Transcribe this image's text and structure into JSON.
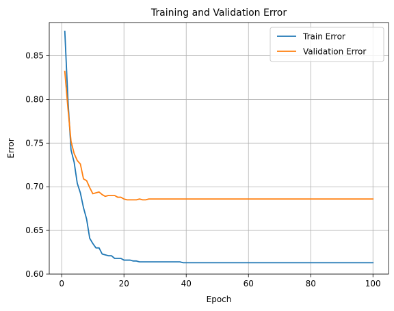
{
  "chart_data": {
    "type": "line",
    "title": "Training and Validation Error",
    "xlabel": "Epoch",
    "ylabel": "Error",
    "xlim": [
      -4,
      105
    ],
    "ylim": [
      0.6,
      0.888
    ],
    "xticks": [
      0,
      20,
      40,
      60,
      80,
      100
    ],
    "yticks": [
      0.6,
      0.65,
      0.7,
      0.75,
      0.8,
      0.85
    ],
    "xtick_labels": [
      "0",
      "20",
      "40",
      "60",
      "80",
      "100"
    ],
    "ytick_labels": [
      "0.60",
      "0.65",
      "0.70",
      "0.75",
      "0.80",
      "0.85"
    ],
    "grid": true,
    "legend_position": "upper-right",
    "series": [
      {
        "name": "Train Error",
        "color": "#1f77b4",
        "x": [
          1,
          2,
          3,
          4,
          5,
          6,
          7,
          8,
          9,
          10,
          11,
          12,
          13,
          14,
          15,
          16,
          17,
          18,
          19,
          20,
          21,
          22,
          23,
          24,
          25,
          26,
          27,
          28,
          29,
          30,
          31,
          32,
          33,
          34,
          35,
          36,
          37,
          38,
          39,
          40,
          45,
          50,
          60,
          70,
          80,
          90,
          100
        ],
        "y": [
          0.878,
          0.8,
          0.742,
          0.728,
          0.704,
          0.693,
          0.676,
          0.663,
          0.641,
          0.635,
          0.63,
          0.63,
          0.623,
          0.622,
          0.621,
          0.621,
          0.618,
          0.618,
          0.618,
          0.616,
          0.616,
          0.616,
          0.615,
          0.615,
          0.614,
          0.614,
          0.614,
          0.614,
          0.614,
          0.614,
          0.614,
          0.614,
          0.614,
          0.614,
          0.614,
          0.614,
          0.614,
          0.614,
          0.613,
          0.613,
          0.613,
          0.613,
          0.613,
          0.613,
          0.613,
          0.613,
          0.613
        ]
      },
      {
        "name": "Validation Error",
        "color": "#ff7f0e",
        "x": [
          1,
          2,
          3,
          4,
          5,
          6,
          7,
          8,
          9,
          10,
          11,
          12,
          13,
          14,
          15,
          16,
          17,
          18,
          19,
          20,
          21,
          22,
          23,
          24,
          25,
          26,
          27,
          28,
          29,
          30,
          35,
          40,
          50,
          60,
          70,
          80,
          90,
          100
        ],
        "y": [
          0.832,
          0.79,
          0.752,
          0.738,
          0.73,
          0.726,
          0.709,
          0.707,
          0.699,
          0.692,
          0.693,
          0.694,
          0.691,
          0.689,
          0.69,
          0.69,
          0.69,
          0.688,
          0.688,
          0.686,
          0.685,
          0.685,
          0.685,
          0.685,
          0.686,
          0.685,
          0.685,
          0.686,
          0.686,
          0.686,
          0.686,
          0.686,
          0.686,
          0.686,
          0.686,
          0.686,
          0.686,
          0.686
        ]
      }
    ]
  }
}
